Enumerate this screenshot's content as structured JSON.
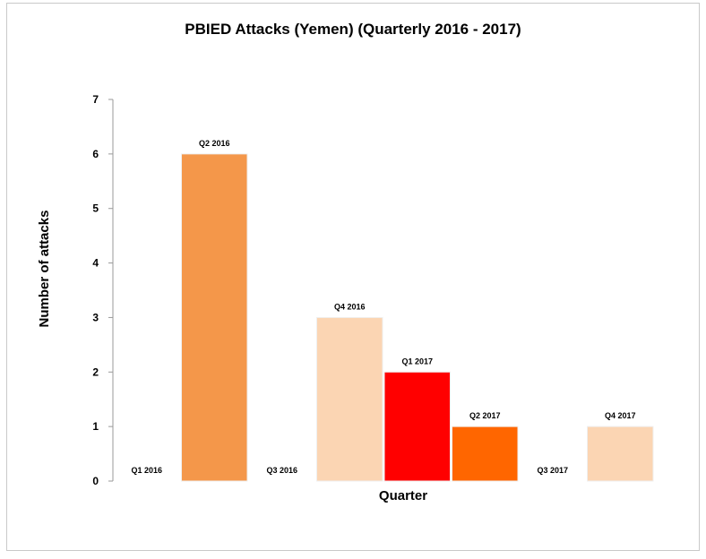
{
  "chart_data": {
    "type": "bar",
    "title": "PBIED Attacks (Yemen) (Quarterly 2016 - 2017)",
    "xlabel": "Quarter",
    "ylabel": "Number of attacks",
    "ylim": [
      0,
      7
    ],
    "yticks": [
      0,
      1,
      2,
      3,
      4,
      5,
      6,
      7
    ],
    "grid": false,
    "legend": "none",
    "categories": [
      "Q1 2016",
      "Q2 2016",
      "Q3 2016",
      "Q4 2016",
      "Q1 2017",
      "Q2 2017",
      "Q3 2017",
      "Q4 2017"
    ],
    "values": [
      0,
      6,
      0,
      3,
      2,
      1,
      0,
      1
    ],
    "colors": [
      "#fbd5b3",
      "#f4974a",
      "#fbd5b3",
      "#fbd5b3",
      "#ff0000",
      "#ff6600",
      "#fbd5b3",
      "#fbd5b3"
    ]
  }
}
